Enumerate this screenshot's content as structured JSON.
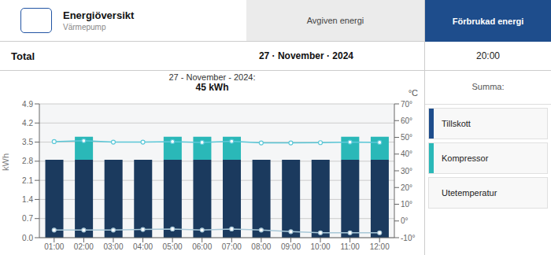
{
  "chart_data": {
    "type": "bar",
    "title": "27 - November - 2024:",
    "subtitle": "45 kWh",
    "y_label": "kWh",
    "y2_label": "°C",
    "stacked": true,
    "grid": true,
    "categories": [
      "01:00",
      "02:00",
      "03:00",
      "04:00",
      "05:00",
      "06:00",
      "07:00",
      "08:00",
      "09:00",
      "10:00",
      "11:00",
      "12:00"
    ],
    "series": [
      {
        "type": "bar",
        "color": "#1b3a5e",
        "values": [
          2.85,
          2.85,
          2.85,
          2.85,
          2.85,
          2.85,
          2.85,
          2.85,
          2.85,
          2.85,
          2.85,
          2.85
        ]
      },
      {
        "type": "bar",
        "color": "#2ab8b8",
        "values": [
          0.0,
          0.85,
          0.0,
          0.0,
          0.85,
          0.85,
          0.85,
          0.0,
          0.0,
          0.0,
          0.85,
          0.85
        ]
      },
      {
        "type": "line",
        "marker": "o",
        "color": "#5bc8d8",
        "values": [
          3.52,
          3.55,
          3.5,
          3.5,
          3.52,
          3.49,
          3.53,
          3.47,
          3.47,
          3.48,
          3.5,
          3.49
        ]
      },
      {
        "type": "line",
        "marker": "o",
        "color": "#a8c8d8",
        "values": [
          0.28,
          0.28,
          0.28,
          0.3,
          0.32,
          0.28,
          0.32,
          0.28,
          0.22,
          0.18,
          0.18,
          0.18
        ]
      }
    ],
    "ylim": [
      0.0,
      4.9
    ],
    "yticks": [
      {
        "value": 0.0,
        "label": "0.0"
      },
      0.7,
      1.4,
      2.1,
      2.8,
      3.5,
      4.2,
      4.9
    ],
    "y2lim": [
      -10,
      70
    ],
    "y2ticks": [
      {
        "value": -10,
        "label": "-10°"
      },
      {
        "value": 0,
        "label": "0°"
      },
      {
        "value": 10,
        "label": "10°"
      },
      {
        "value": 20,
        "label": "20°"
      },
      {
        "value": 30,
        "label": "30°"
      },
      {
        "value": 40,
        "label": "40°"
      },
      {
        "value": 50,
        "label": "50°"
      },
      {
        "value": 60,
        "label": "60°"
      },
      {
        "value": 70,
        "label": "70°"
      }
    ],
    "annotations": [
      "Energiöversikt",
      "Värmepump",
      "Avgiven energi",
      "Förbrukad energi",
      "Total",
      "27 · November · 2024",
      "20:00",
      "Summa:",
      "Tillskott",
      "Kompressor",
      "Utetemperatur"
    ]
  }
}
